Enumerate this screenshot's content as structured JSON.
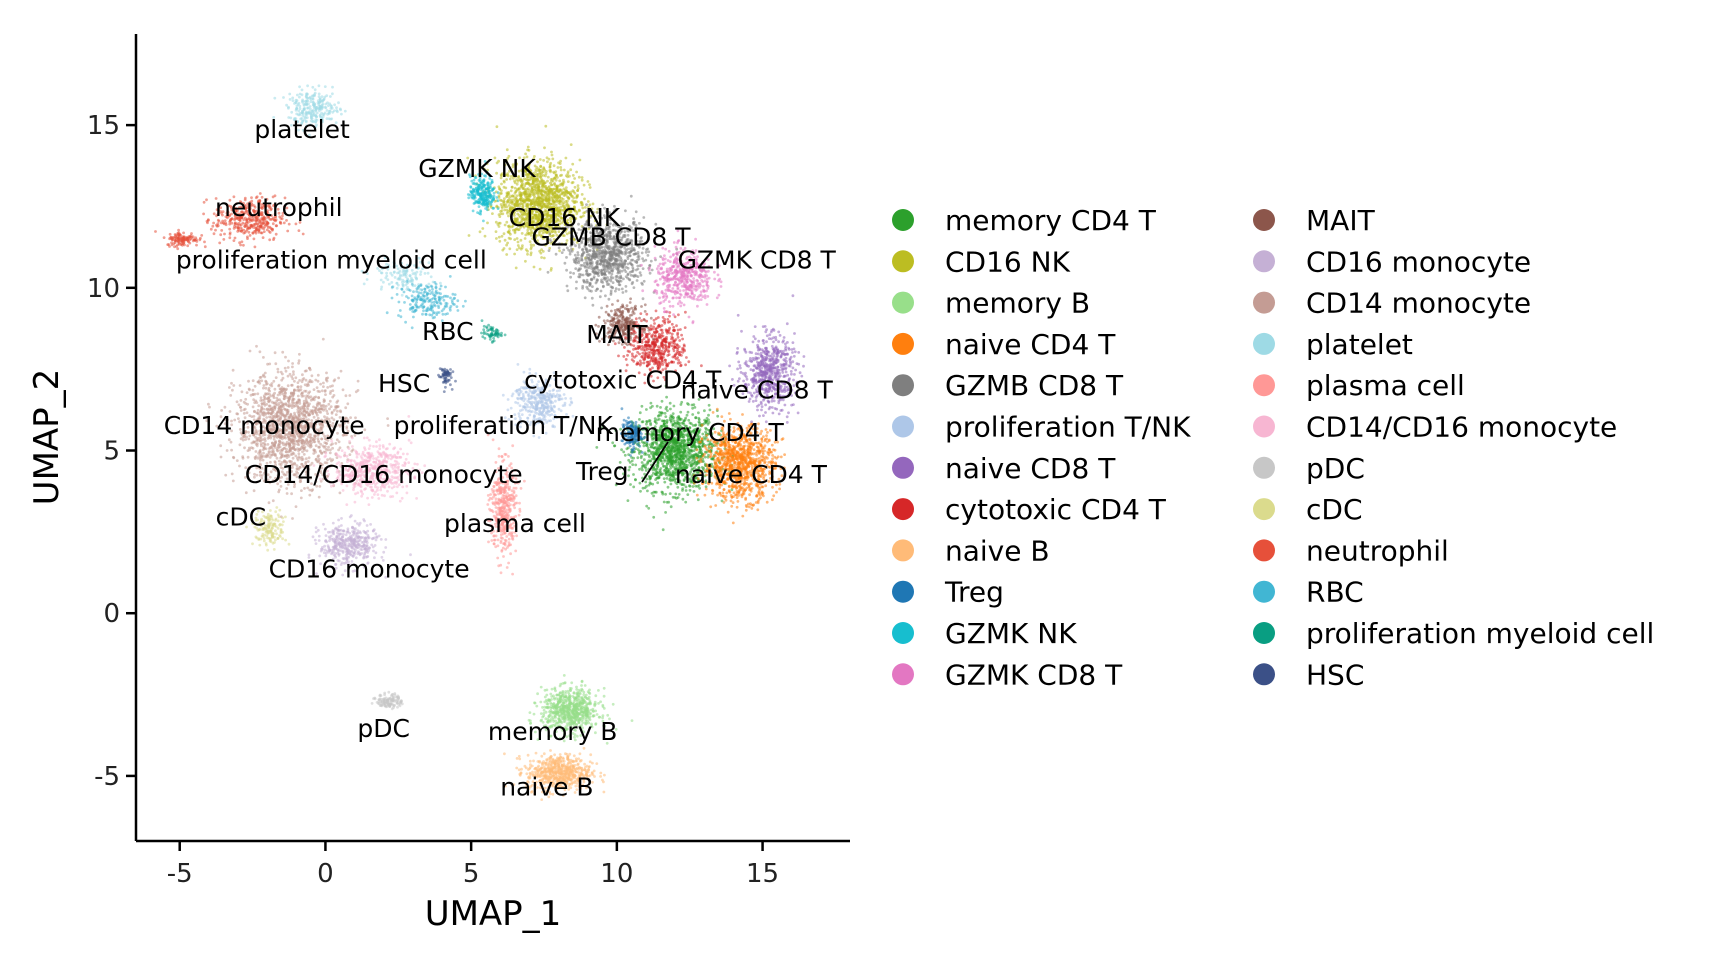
{
  "chart_data": {
    "type": "scatter",
    "xlabel": "UMAP_1",
    "ylabel": "UMAP_2",
    "xlim": [
      -6.5,
      18
    ],
    "ylim": [
      -7,
      17.8
    ],
    "xticks": [
      -5,
      0,
      5,
      10,
      15
    ],
    "yticks": [
      -5,
      0,
      5,
      10,
      15
    ],
    "xtick_labels": [
      "-5",
      "0",
      "5",
      "10",
      "15"
    ],
    "ytick_labels": [
      "-5",
      "0",
      "5",
      "10",
      "15"
    ],
    "grid": false,
    "legend_position": "right",
    "legend_columns": 2,
    "series": [
      {
        "name": "memory CD4 T",
        "color": "#2ca02c",
        "clusters": [
          {
            "cx": 12.0,
            "cy": 5.0,
            "sx": 1.3,
            "sy": 1.1,
            "n": 1300
          }
        ]
      },
      {
        "name": "CD16 NK",
        "color": "#bcbd22",
        "clusters": [
          {
            "cx": 7.3,
            "cy": 12.6,
            "sx": 1.3,
            "sy": 1.2,
            "n": 1400
          }
        ]
      },
      {
        "name": "memory B",
        "color": "#98df8a",
        "clusters": [
          {
            "cx": 8.4,
            "cy": -3.0,
            "sx": 0.9,
            "sy": 0.6,
            "n": 700
          }
        ]
      },
      {
        "name": "naive CD4 T",
        "color": "#ff7f0e",
        "clusters": [
          {
            "cx": 14.2,
            "cy": 4.6,
            "sx": 1.1,
            "sy": 1.0,
            "n": 1000
          }
        ]
      },
      {
        "name": "GZMB CD8 T",
        "color": "#7f7f7f",
        "clusters": [
          {
            "cx": 9.7,
            "cy": 11.0,
            "sx": 1.2,
            "sy": 1.0,
            "n": 900
          }
        ]
      },
      {
        "name": "proliferation T/NK",
        "color": "#aec7e8",
        "clusters": [
          {
            "cx": 7.3,
            "cy": 6.5,
            "sx": 0.8,
            "sy": 0.7,
            "n": 350
          }
        ]
      },
      {
        "name": "naive CD8 T",
        "color": "#9467bd",
        "clusters": [
          {
            "cx": 15.2,
            "cy": 7.4,
            "sx": 0.8,
            "sy": 1.0,
            "n": 600
          }
        ]
      },
      {
        "name": "cytotoxic CD4 T",
        "color": "#d62728",
        "clusters": [
          {
            "cx": 11.4,
            "cy": 8.2,
            "sx": 0.9,
            "sy": 0.8,
            "n": 450
          }
        ]
      },
      {
        "name": "naive B",
        "color": "#ffbb78",
        "clusters": [
          {
            "cx": 8.0,
            "cy": -4.9,
            "sx": 1.0,
            "sy": 0.5,
            "n": 600
          }
        ]
      },
      {
        "name": "Treg",
        "color": "#1f77b4",
        "clusters": [
          {
            "cx": 10.5,
            "cy": 5.5,
            "sx": 0.3,
            "sy": 0.4,
            "n": 150
          }
        ]
      },
      {
        "name": "GZMK NK",
        "color": "#17becf",
        "clusters": [
          {
            "cx": 5.4,
            "cy": 12.9,
            "sx": 0.4,
            "sy": 0.5,
            "n": 250
          }
        ]
      },
      {
        "name": "GZMK CD8 T",
        "color": "#e377c2",
        "clusters": [
          {
            "cx": 12.3,
            "cy": 10.3,
            "sx": 0.9,
            "sy": 0.8,
            "n": 450
          }
        ]
      },
      {
        "name": "MAIT",
        "color": "#8c564b",
        "clusters": [
          {
            "cx": 10.2,
            "cy": 8.9,
            "sx": 0.6,
            "sy": 0.5,
            "n": 250
          }
        ]
      },
      {
        "name": "CD16 monocyte",
        "color": "#c5b0d5",
        "clusters": [
          {
            "cx": 0.8,
            "cy": 2.1,
            "sx": 0.9,
            "sy": 0.6,
            "n": 400
          }
        ]
      },
      {
        "name": "CD14 monocyte",
        "color": "#c49c94",
        "clusters": [
          {
            "cx": -1.2,
            "cy": 5.7,
            "sx": 1.7,
            "sy": 1.5,
            "n": 1500
          }
        ]
      },
      {
        "name": "platelet",
        "color": "#9edae5",
        "clusters": [
          {
            "cx": -0.4,
            "cy": 15.5,
            "sx": 0.8,
            "sy": 0.5,
            "n": 250
          },
          {
            "cx": 2.6,
            "cy": 10.4,
            "sx": 0.9,
            "sy": 0.4,
            "n": 120
          }
        ]
      },
      {
        "name": "plasma cell",
        "color": "#ff9896",
        "clusters": [
          {
            "cx": 6.1,
            "cy": 3.2,
            "sx": 0.4,
            "sy": 1.3,
            "n": 400
          }
        ]
      },
      {
        "name": "CD14/CD16 monocyte",
        "color": "#f7b6d2",
        "clusters": [
          {
            "cx": 1.6,
            "cy": 4.4,
            "sx": 1.2,
            "sy": 0.7,
            "n": 500
          }
        ]
      },
      {
        "name": "pDC",
        "color": "#c7c7c7",
        "clusters": [
          {
            "cx": 2.2,
            "cy": -2.7,
            "sx": 0.4,
            "sy": 0.2,
            "n": 120
          }
        ]
      },
      {
        "name": "cDC",
        "color": "#dbdb8d",
        "clusters": [
          {
            "cx": -1.9,
            "cy": 2.6,
            "sx": 0.5,
            "sy": 0.5,
            "n": 150
          }
        ]
      },
      {
        "name": "neutrophil",
        "color": "#e6503a",
        "clusters": [
          {
            "cx": -2.6,
            "cy": 12.1,
            "sx": 1.1,
            "sy": 0.6,
            "n": 400
          },
          {
            "cx": -4.9,
            "cy": 11.5,
            "sx": 0.5,
            "sy": 0.2,
            "n": 120
          }
        ]
      },
      {
        "name": "RBC",
        "color": "#41b6d3",
        "clusters": [
          {
            "cx": 3.5,
            "cy": 9.6,
            "sx": 0.9,
            "sy": 0.5,
            "n": 200
          }
        ]
      },
      {
        "name": "proliferation myeloid cell",
        "color": "#099e82",
        "clusters": [
          {
            "cx": 5.7,
            "cy": 8.6,
            "sx": 0.3,
            "sy": 0.2,
            "n": 60
          }
        ]
      },
      {
        "name": "HSC",
        "color": "#3b5087",
        "clusters": [
          {
            "cx": 4.1,
            "cy": 7.3,
            "sx": 0.2,
            "sy": 0.3,
            "n": 60
          }
        ]
      }
    ],
    "annotations": [
      {
        "text": "platelet",
        "x": -0.8,
        "y": 14.6
      },
      {
        "text": "GZMK NK",
        "x": 5.2,
        "y": 13.4
      },
      {
        "text": "neutrophil",
        "x": -1.6,
        "y": 12.2
      },
      {
        "text": "CD16 NK",
        "x": 8.2,
        "y": 11.9
      },
      {
        "text": "GZMB CD8 T",
        "x": 9.8,
        "y": 11.3
      },
      {
        "text": "GZMK CD8 T",
        "x": 14.8,
        "y": 10.6
      },
      {
        "text": "proliferation myeloid cell",
        "x": 0.2,
        "y": 10.6
      },
      {
        "text": "RBC",
        "x": 4.2,
        "y": 8.4
      },
      {
        "text": "MAIT",
        "x": 10.0,
        "y": 8.3
      },
      {
        "text": "cytotoxic CD4 T",
        "x": 10.2,
        "y": 6.9
      },
      {
        "text": "HSC",
        "x": 2.7,
        "y": 6.8
      },
      {
        "text": "naive CD8 T",
        "x": 14.8,
        "y": 6.6
      },
      {
        "text": "CD14 monocyte",
        "x": -2.1,
        "y": 5.5
      },
      {
        "text": "proliferation T/NK",
        "x": 6.1,
        "y": 5.5
      },
      {
        "text": "memory CD4 T",
        "x": 12.5,
        "y": 5.3
      },
      {
        "text": "CD14/CD16 monocyte",
        "x": 2.0,
        "y": 4.0
      },
      {
        "text": "Treg",
        "x": 9.5,
        "y": 4.1
      },
      {
        "text": "naive CD4 T",
        "x": 14.6,
        "y": 4.0
      },
      {
        "text": "cDC",
        "x": -2.9,
        "y": 2.7
      },
      {
        "text": "plasma cell",
        "x": 6.5,
        "y": 2.5
      },
      {
        "text": "CD16 monocyte",
        "x": 1.5,
        "y": 1.1
      },
      {
        "text": "pDC",
        "x": 2.0,
        "y": -3.8
      },
      {
        "text": "memory B",
        "x": 7.8,
        "y": -3.9
      },
      {
        "text": "naive B",
        "x": 7.6,
        "y": -5.6
      }
    ]
  }
}
